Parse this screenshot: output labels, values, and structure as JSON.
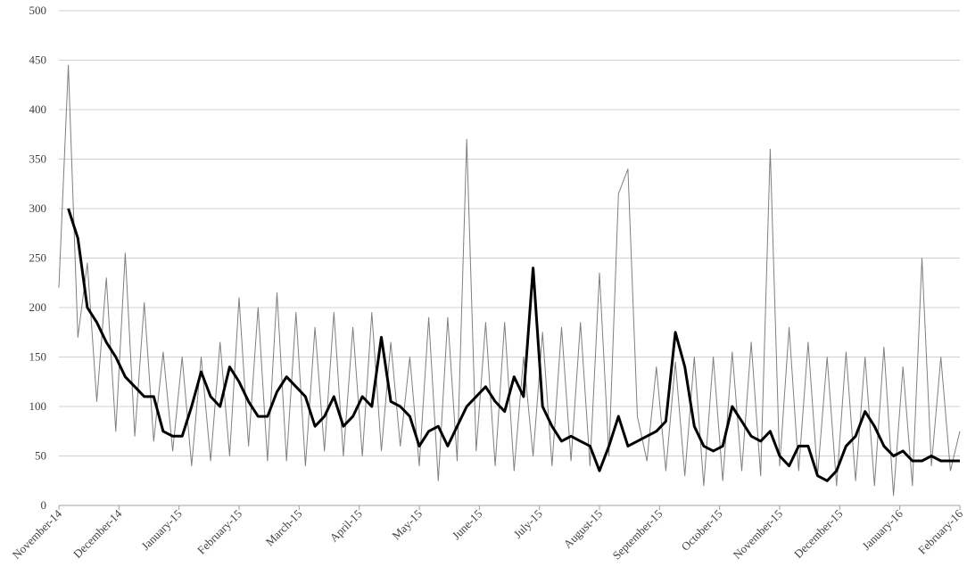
{
  "chart_data": {
    "type": "line",
    "title": "",
    "xlabel": "",
    "ylabel": "",
    "ylim": [
      0,
      500
    ],
    "y_ticks": [
      0,
      50,
      100,
      150,
      200,
      250,
      300,
      350,
      400,
      450,
      500
    ],
    "x_tick_labels": [
      "November-14",
      "December-14",
      "January-15",
      "February-15",
      "March-15",
      "April-15",
      "May-15",
      "June-15",
      "July-15",
      "August-15",
      "September-15",
      "October-15",
      "November-15",
      "December-15",
      "January-16",
      "February-16"
    ],
    "grid": "horizontal",
    "legend": "none",
    "colors": {
      "daily": "#7f7f7f",
      "moving_average": "#000000",
      "grid": "#d0d0d0"
    },
    "series": [
      {
        "style": "thin-gray",
        "x": [
          0,
          5,
          10,
          15,
          20,
          25,
          30,
          35,
          40,
          45,
          50,
          55,
          60,
          65,
          70,
          75,
          80,
          85,
          90,
          95,
          100,
          105,
          110,
          115,
          120,
          125,
          130,
          135,
          140,
          145,
          150,
          155,
          160,
          165,
          170,
          175,
          180,
          185,
          190,
          195,
          200,
          205,
          210,
          215,
          220,
          225,
          230,
          235,
          240,
          245,
          250,
          255,
          260,
          265,
          270,
          275,
          280,
          285,
          290,
          295,
          300,
          305,
          310,
          315,
          320,
          325,
          330,
          335,
          340,
          345,
          350,
          355,
          360,
          365,
          370,
          375,
          380,
          385,
          390,
          395,
          400,
          405,
          410,
          415,
          420,
          425,
          430,
          435,
          440,
          445,
          450,
          455,
          460,
          465,
          470,
          475
        ],
        "values": [
          220,
          445,
          170,
          245,
          105,
          230,
          75,
          255,
          70,
          205,
          65,
          155,
          55,
          150,
          40,
          150,
          45,
          165,
          50,
          210,
          60,
          200,
          45,
          215,
          45,
          195,
          40,
          180,
          55,
          195,
          50,
          180,
          50,
          195,
          55,
          165,
          60,
          150,
          40,
          190,
          25,
          190,
          45,
          370,
          55,
          185,
          40,
          185,
          35,
          150,
          50,
          175,
          40,
          180,
          45,
          185,
          40,
          235,
          50,
          315,
          340,
          90,
          45,
          140,
          35,
          145,
          30,
          150,
          20,
          150,
          25,
          155,
          35,
          165,
          30,
          360,
          40,
          180,
          35,
          165,
          30,
          150,
          20,
          155,
          25,
          150,
          20,
          160,
          10,
          140,
          20,
          250,
          40,
          150,
          35,
          75
        ]
      },
      {
        "style": "thick-black",
        "x": [
          5,
          10,
          15,
          20,
          25,
          30,
          35,
          40,
          45,
          50,
          55,
          60,
          65,
          70,
          75,
          80,
          85,
          90,
          95,
          100,
          105,
          110,
          115,
          120,
          125,
          130,
          135,
          140,
          145,
          150,
          155,
          160,
          165,
          170,
          175,
          180,
          185,
          190,
          195,
          200,
          205,
          210,
          215,
          220,
          225,
          230,
          235,
          240,
          245,
          250,
          255,
          260,
          265,
          270,
          275,
          280,
          285,
          290,
          295,
          300,
          305,
          310,
          315,
          320,
          325,
          330,
          335,
          340,
          345,
          350,
          355,
          360,
          365,
          370,
          375,
          380,
          385,
          390,
          395,
          400,
          405,
          410,
          415,
          420,
          425,
          430,
          435,
          440,
          445,
          450,
          455,
          460,
          465,
          470,
          475
        ],
        "values": [
          300,
          270,
          200,
          185,
          165,
          150,
          130,
          120,
          110,
          110,
          75,
          70,
          70,
          100,
          135,
          110,
          100,
          140,
          125,
          105,
          90,
          90,
          115,
          130,
          120,
          110,
          80,
          90,
          110,
          80,
          90,
          110,
          100,
          170,
          105,
          100,
          90,
          60,
          75,
          80,
          60,
          80,
          100,
          110,
          120,
          105,
          95,
          130,
          110,
          240,
          100,
          80,
          65,
          70,
          65,
          60,
          35,
          60,
          90,
          60,
          65,
          70,
          75,
          85,
          175,
          140,
          80,
          60,
          55,
          60,
          100,
          85,
          70,
          65,
          75,
          50,
          40,
          60,
          60,
          30,
          25,
          35,
          60,
          70,
          95,
          80,
          60,
          50,
          55,
          45,
          45,
          50,
          45,
          45,
          45
        ]
      }
    ]
  }
}
